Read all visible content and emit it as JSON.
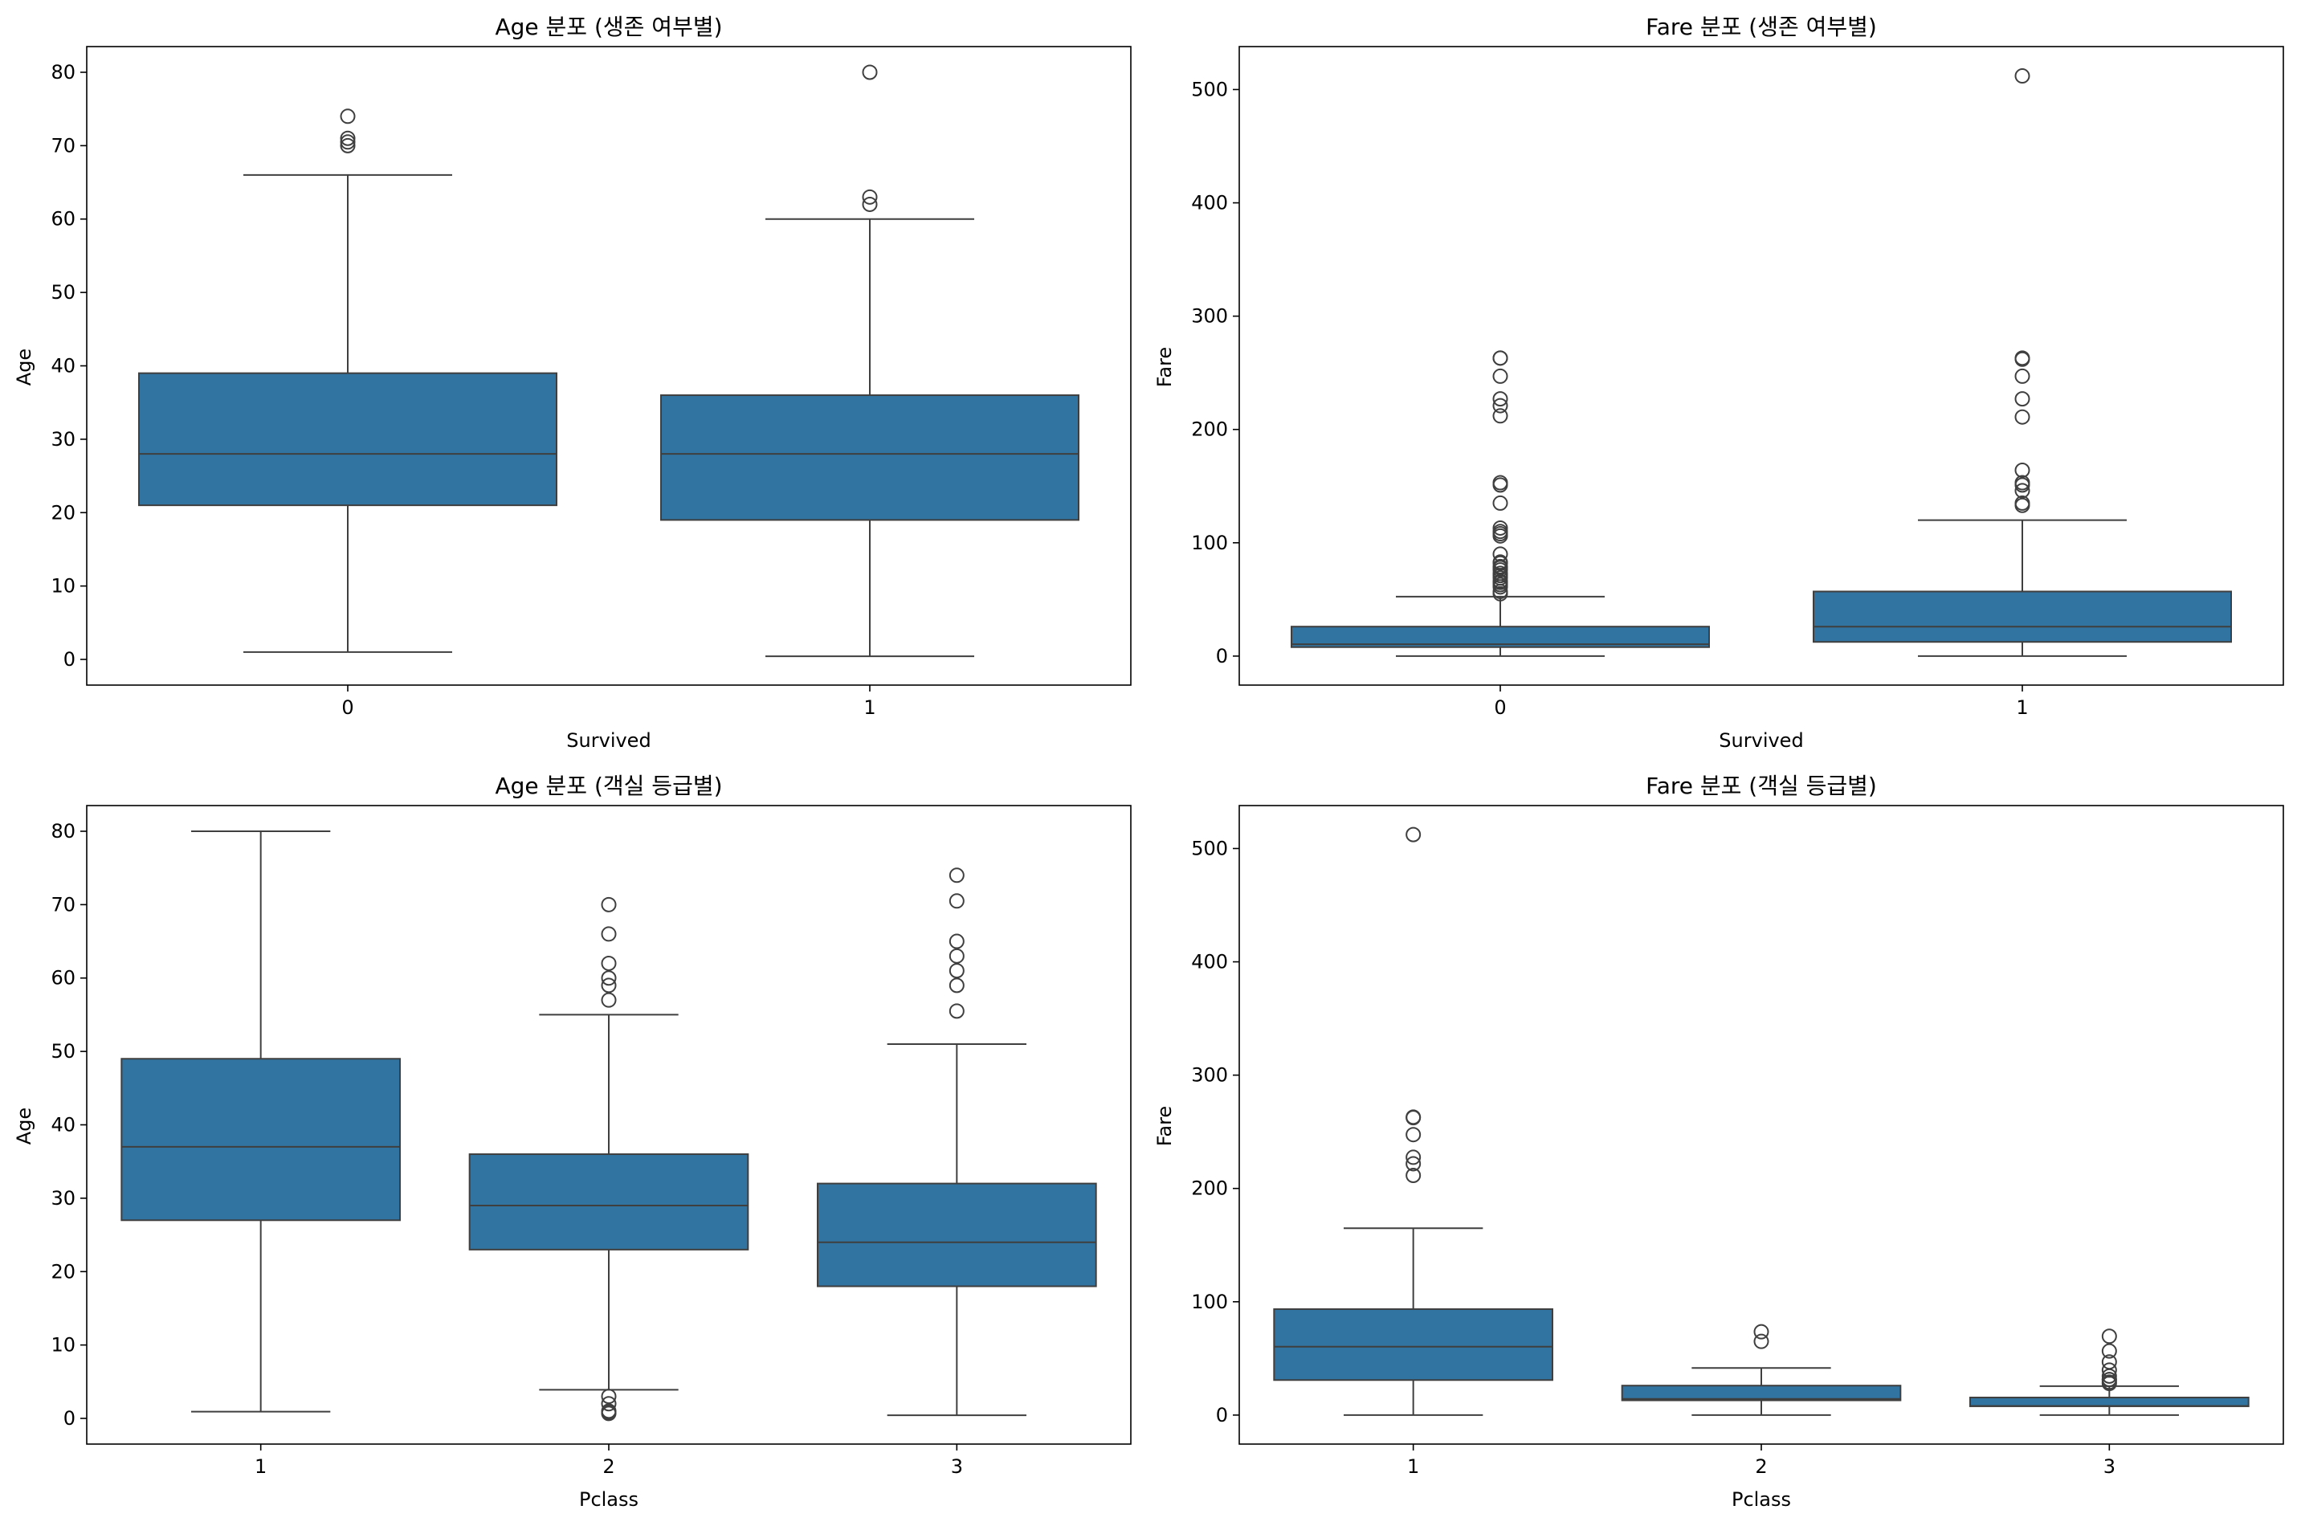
{
  "style": {
    "box_fill": "#3274A1",
    "box_edge": "#3f3f3f",
    "flier_edge": "#3f3f3f"
  },
  "chart_data": [
    {
      "type": "box",
      "title": "Age 분포 (생존 여부별)",
      "xlabel": "Survived",
      "ylabel": "Age",
      "categories": [
        "0",
        "1"
      ],
      "ylim": [
        -3.5,
        83.5
      ],
      "yticks": [
        "0",
        "10",
        "20",
        "30",
        "40",
        "50",
        "60",
        "70",
        "80"
      ],
      "boxes": [
        {
          "whislo": 1,
          "q1": 21,
          "med": 28,
          "q3": 39,
          "whishi": 66,
          "fliers": [
            70,
            70.5,
            71,
            74
          ]
        },
        {
          "whislo": 0.42,
          "q1": 19,
          "med": 28,
          "q3": 36,
          "whishi": 60,
          "fliers": [
            62,
            63,
            80
          ]
        }
      ]
    },
    {
      "type": "box",
      "title": "Fare 분포 (생존 여부별)",
      "xlabel": "Survived",
      "ylabel": "Fare",
      "categories": [
        "0",
        "1"
      ],
      "ylim": [
        -25.6,
        537.9
      ],
      "yticks": [
        "0",
        "100",
        "200",
        "300",
        "400",
        "500"
      ],
      "boxes": [
        {
          "whislo": 0,
          "q1": 7.9,
          "med": 10.5,
          "q3": 26,
          "whishi": 52.5,
          "fliers": [
            55,
            57,
            61,
            63,
            65,
            66,
            69,
            71,
            73,
            76,
            78,
            79,
            82,
            83,
            90,
            106,
            108,
            110,
            113,
            135,
            151,
            153,
            212,
            221,
            227,
            247,
            263,
            263
          ]
        },
        {
          "whislo": 0,
          "q1": 12.5,
          "med": 26,
          "q3": 57,
          "whishi": 120,
          "fliers": [
            133,
            135,
            146,
            151,
            153,
            164,
            211,
            227,
            247,
            262,
            263,
            512
          ]
        }
      ]
    },
    {
      "type": "box",
      "title": "Age 분포 (객실 등급별)",
      "xlabel": "Pclass",
      "ylabel": "Age",
      "categories": [
        "1",
        "2",
        "3"
      ],
      "ylim": [
        -3.5,
        83.5
      ],
      "yticks": [
        "0",
        "10",
        "20",
        "30",
        "40",
        "50",
        "60",
        "70",
        "80"
      ],
      "boxes": [
        {
          "whislo": 0.92,
          "q1": 27,
          "med": 37,
          "q3": 49,
          "whishi": 80,
          "fliers": []
        },
        {
          "whislo": 3.9,
          "q1": 23,
          "med": 29,
          "q3": 36,
          "whishi": 55,
          "fliers": [
            0.67,
            0.83,
            1,
            2,
            3,
            57,
            59,
            60,
            62,
            66,
            70
          ]
        },
        {
          "whislo": 0.42,
          "q1": 18,
          "med": 24,
          "q3": 32,
          "whishi": 51,
          "fliers": [
            55.5,
            59,
            61,
            63,
            65,
            70.5,
            74
          ]
        }
      ]
    },
    {
      "type": "box",
      "title": "Fare 분포 (객실 등급별)",
      "xlabel": "Pclass",
      "ylabel": "Fare",
      "categories": [
        "1",
        "2",
        "3"
      ],
      "ylim": [
        -25.6,
        537.9
      ],
      "yticks": [
        "0",
        "100",
        "200",
        "300",
        "400",
        "500"
      ],
      "boxes": [
        {
          "whislo": 0,
          "q1": 30.9,
          "med": 60.3,
          "q3": 93.5,
          "whishi": 164.9,
          "fliers": [
            211.5,
            221.8,
            227.5,
            247.5,
            262.4,
            263,
            512.3
          ]
        },
        {
          "whislo": 0,
          "q1": 13,
          "med": 14.25,
          "q3": 26,
          "whishi": 41.6,
          "fliers": [
            65,
            73.5
          ]
        },
        {
          "whislo": 0,
          "q1": 7.75,
          "med": 8.05,
          "q3": 15.5,
          "whishi": 25.5,
          "fliers": [
            27.9,
            29.1,
            31.3,
            31.4,
            34.4,
            39.7,
            46.9,
            56.5,
            69.55
          ]
        }
      ]
    }
  ]
}
